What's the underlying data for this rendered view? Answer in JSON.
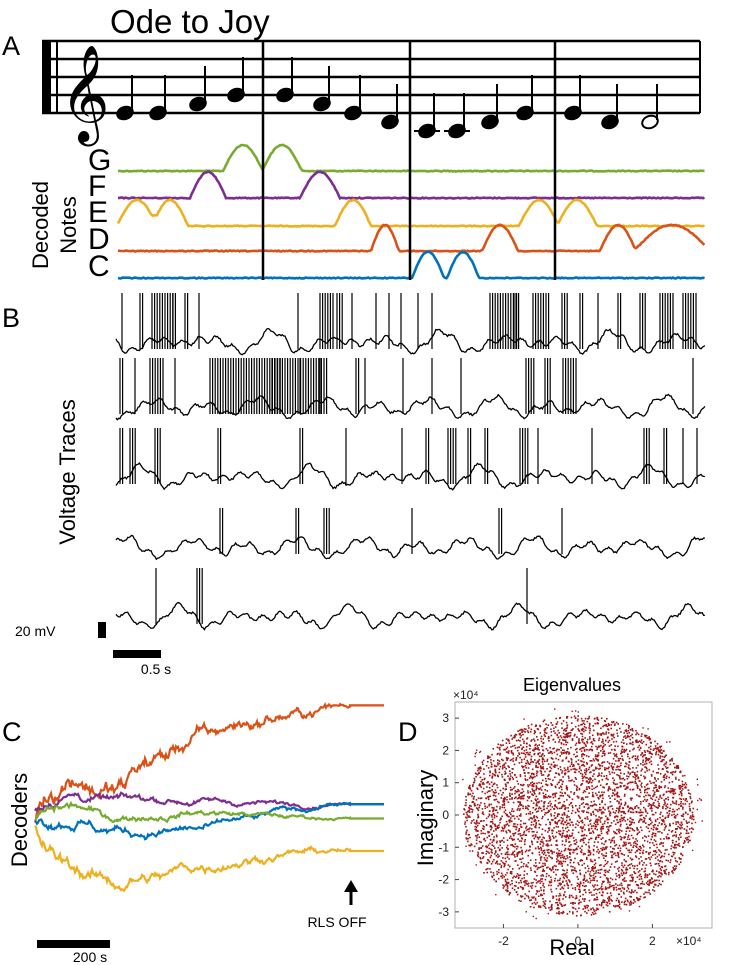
{
  "panels": {
    "a": "A",
    "b": "B",
    "c": "C",
    "d": "D"
  },
  "song_title": "Ode to Joy",
  "staff": {
    "notes": [
      "E",
      "E",
      "F",
      "G",
      "G",
      "F",
      "E",
      "D",
      "C",
      "C",
      "D",
      "E",
      "E",
      "D",
      "D"
    ],
    "durations": [
      "quarter",
      "quarter",
      "quarter",
      "quarter",
      "quarter",
      "quarter",
      "quarter",
      "quarter",
      "quarter",
      "quarter",
      "quarter",
      "quarter",
      "quarter",
      "quarter",
      "half"
    ]
  },
  "decoded": {
    "ylabel_line1": "Decoded",
    "ylabel_line2": "Notes",
    "note_labels": [
      "G",
      "F",
      "E",
      "D",
      "C"
    ],
    "colors": {
      "G": "#77AC30",
      "F": "#7E2F8E",
      "E": "#EDB120",
      "D": "#D95319",
      "C": "#0072BD"
    }
  },
  "traces": {
    "ylabel": "Voltage Traces",
    "scalebar_v": "20 mV",
    "scalebar_t": "0.5 s"
  },
  "decoders": {
    "ylabel": "Decoders",
    "arrow_label": "RLS OFF",
    "scalebar_t": "200 s"
  },
  "chart_data": [
    {
      "type": "line",
      "title": "",
      "xlabel": "",
      "ylabel": "Decoders",
      "series": [
        {
          "color": "#D95319",
          "final": 0.92
        },
        {
          "color": "#7E2F8E",
          "final": 0.16
        },
        {
          "color": "#0072BD",
          "final": 0.16
        },
        {
          "color": "#77AC30",
          "final": 0.05
        },
        {
          "color": "#EDB120",
          "final": -0.2
        }
      ]
    },
    {
      "type": "scatter",
      "title": "Eigenvalues",
      "xlabel": "Real",
      "ylabel": "Imaginary",
      "x_exponent": "×10⁴",
      "y_exponent": "×10⁴",
      "xlim": [
        -3.3,
        3.6
      ],
      "ylim": [
        -3.5,
        3.5
      ],
      "xticks": [
        -2,
        0,
        2
      ],
      "yticks": [
        3,
        2,
        1,
        0,
        -1,
        -2,
        -3
      ],
      "point_color": "#A31515",
      "distribution": {
        "center": [
          0,
          0
        ],
        "radius_real": 3.1,
        "radius_imag": 3.1
      }
    }
  ]
}
